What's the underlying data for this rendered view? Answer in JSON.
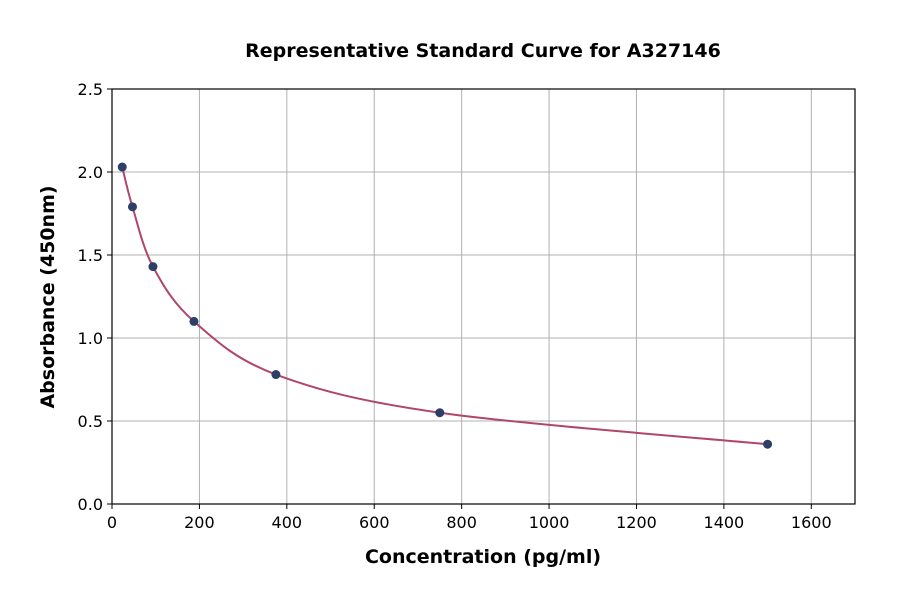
{
  "chart_data": {
    "type": "scatter",
    "title": "Representative Standard Curve for A327146",
    "xlabel": "Concentration (pg/ml)",
    "ylabel": "Absorbance (450nm)",
    "xlim": [
      0,
      1700
    ],
    "ylim": [
      0,
      2.5
    ],
    "xticks": [
      0,
      200,
      400,
      600,
      800,
      1000,
      1200,
      1400,
      1600
    ],
    "yticks": [
      0.0,
      0.5,
      1.0,
      1.5,
      2.0,
      2.5
    ],
    "ytick_labels": [
      "0.0",
      "0.5",
      "1.0",
      "1.5",
      "2.0",
      "2.5"
    ],
    "grid": true,
    "legend": "none",
    "points": {
      "x": [
        23.44,
        46.88,
        93.75,
        187.5,
        375,
        750,
        1500
      ],
      "y": [
        2.03,
        1.79,
        1.43,
        1.1,
        0.78,
        0.55,
        0.36
      ]
    },
    "colors": {
      "points": "#2d3f66",
      "curve": "#b0466e",
      "grid": "#b0b0b0"
    }
  }
}
